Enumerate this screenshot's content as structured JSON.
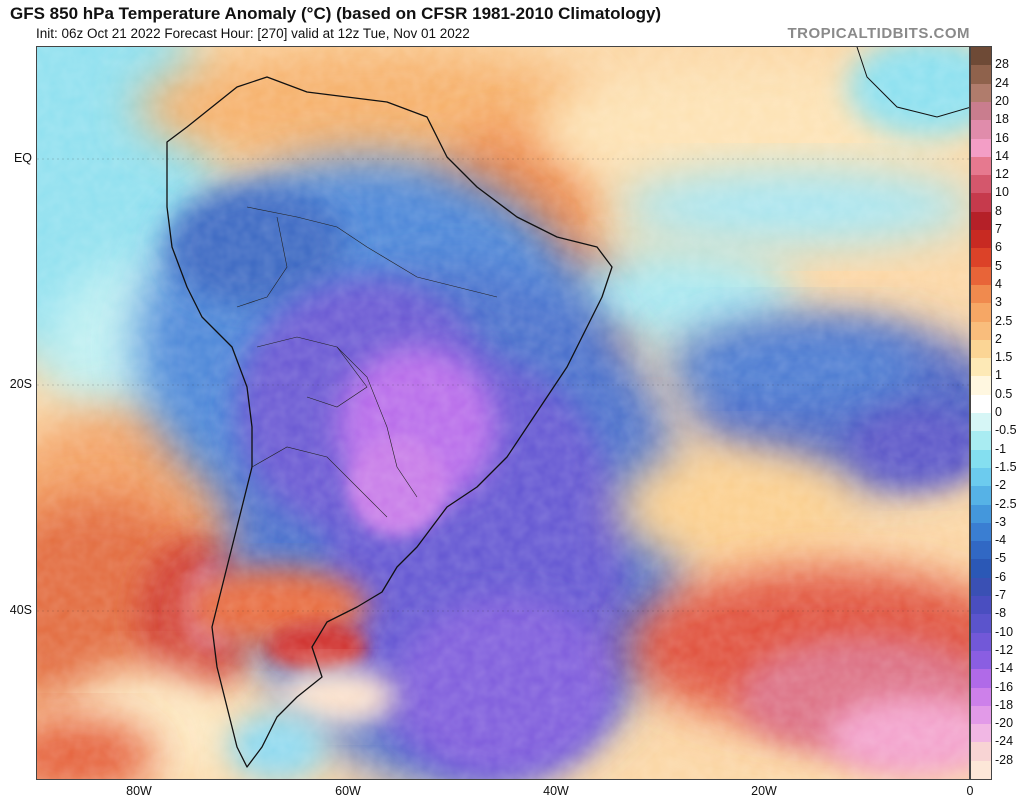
{
  "header": {
    "title": "GFS 850 hPa Temperature Anomaly (°C) (based on CFSR 1981-2010 Climatology)",
    "subtitle": "Init: 06z Oct 21 2022   Forecast Hour: [270]   valid at 12z Tue, Nov 01 2022",
    "brand": "TROPICALTIDBITS.COM"
  },
  "axes": {
    "lat_labels": [
      "EQ",
      "20S",
      "40S"
    ],
    "lon_labels": [
      "80W",
      "60W",
      "40W",
      "20W",
      "0"
    ]
  },
  "colorbar": {
    "levels": [
      {
        "label": "28",
        "color": "#6e4a36"
      },
      {
        "label": "24",
        "color": "#8f624c"
      },
      {
        "label": "20",
        "color": "#b07c6c"
      },
      {
        "label": "18",
        "color": "#c97d8e"
      },
      {
        "label": "16",
        "color": "#e08cab"
      },
      {
        "label": "14",
        "color": "#f39ec6"
      },
      {
        "label": "12",
        "color": "#e6798f"
      },
      {
        "label": "10",
        "color": "#d4576c"
      },
      {
        "label": "8",
        "color": "#c63a4c"
      },
      {
        "label": "7",
        "color": "#b52028"
      },
      {
        "label": "6",
        "color": "#c82a22"
      },
      {
        "label": "5",
        "color": "#dc4228"
      },
      {
        "label": "4",
        "color": "#e86438"
      },
      {
        "label": "3",
        "color": "#f08a4e"
      },
      {
        "label": "2.5",
        "color": "#f6a765"
      },
      {
        "label": "2",
        "color": "#f9bd7c"
      },
      {
        "label": "1.5",
        "color": "#fbd595"
      },
      {
        "label": "1",
        "color": "#fde9b6"
      },
      {
        "label": "0.5",
        "color": "#fff7e0"
      },
      {
        "label": "0",
        "color": "#ffffff"
      },
      {
        "label": "-0.5",
        "color": "#d6f6f6"
      },
      {
        "label": "-1",
        "color": "#a9ecf2"
      },
      {
        "label": "-1.5",
        "color": "#84dff0"
      },
      {
        "label": "-2",
        "color": "#6ccbee"
      },
      {
        "label": "-2.5",
        "color": "#56b2e6"
      },
      {
        "label": "-3",
        "color": "#4497dc"
      },
      {
        "label": "-4",
        "color": "#3a7ed2"
      },
      {
        "label": "-5",
        "color": "#3168c4"
      },
      {
        "label": "-6",
        "color": "#2b58b6"
      },
      {
        "label": "-7",
        "color": "#3a50b4"
      },
      {
        "label": "-8",
        "color": "#4a4ec0"
      },
      {
        "label": "-10",
        "color": "#5b54cc"
      },
      {
        "label": "-12",
        "color": "#7258d8"
      },
      {
        "label": "-14",
        "color": "#8a5ee2"
      },
      {
        "label": "-16",
        "color": "#b06ae8"
      },
      {
        "label": "-18",
        "color": "#cd80ea"
      },
      {
        "label": "-20",
        "color": "#e29ae8"
      },
      {
        "label": "-24",
        "color": "#f1b7e4"
      },
      {
        "label": "-28",
        "color": "#f8d4d4"
      },
      {
        "label": "",
        "color": "#fde7d8"
      }
    ]
  },
  "map": {
    "field": "850 hPa temperature anomaly",
    "features": [
      "strong cold anomaly over central South America and South Atlantic",
      "warm anomaly over southern Chile/Argentina and eastern South Atlantic"
    ]
  }
}
